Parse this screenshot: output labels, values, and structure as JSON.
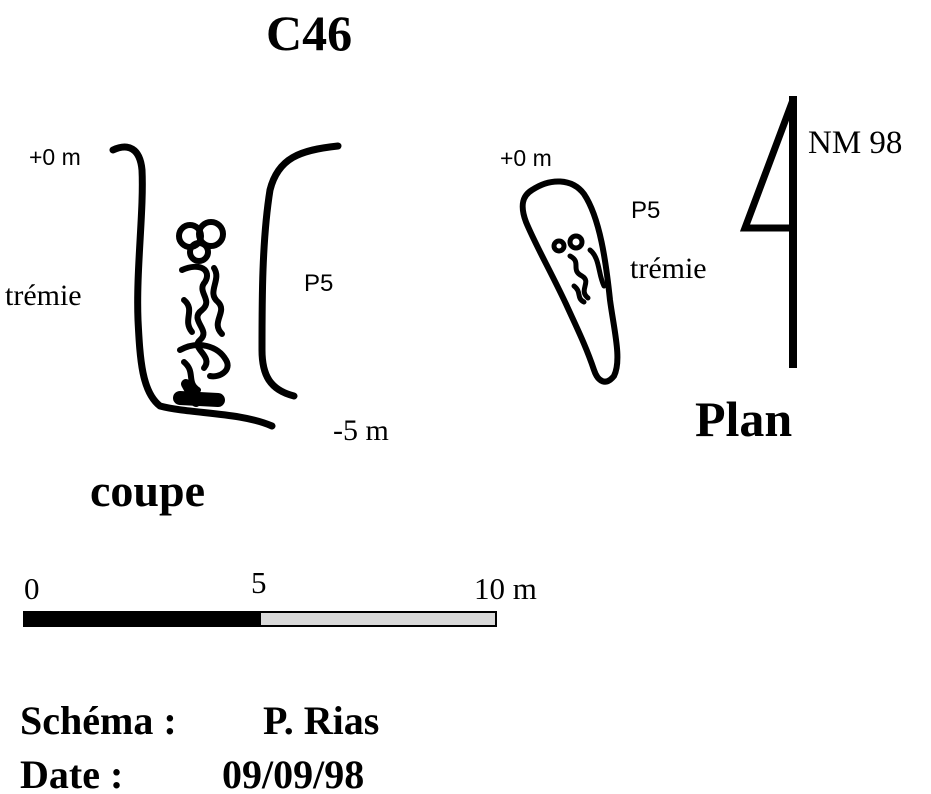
{
  "title": "C46",
  "section": {
    "label_top": "+0 m",
    "label_left": "trémie",
    "label_right": "P5",
    "label_bottom": "-5 m",
    "caption": "coupe"
  },
  "plan": {
    "label_top": "+0 m",
    "label_p5": "P5",
    "label_tremie": "trémie",
    "north": "NM 98",
    "caption": "Plan"
  },
  "scale": {
    "label_0": "0",
    "label_5": "5",
    "label_10": "10 m",
    "colors": {
      "filled": "#000000",
      "empty": "#d9d9d9"
    }
  },
  "credits": {
    "schema_label": "Schéma :",
    "schema_value": "P. Rias",
    "date_label": "Date :",
    "date_value": "09/09/98"
  }
}
